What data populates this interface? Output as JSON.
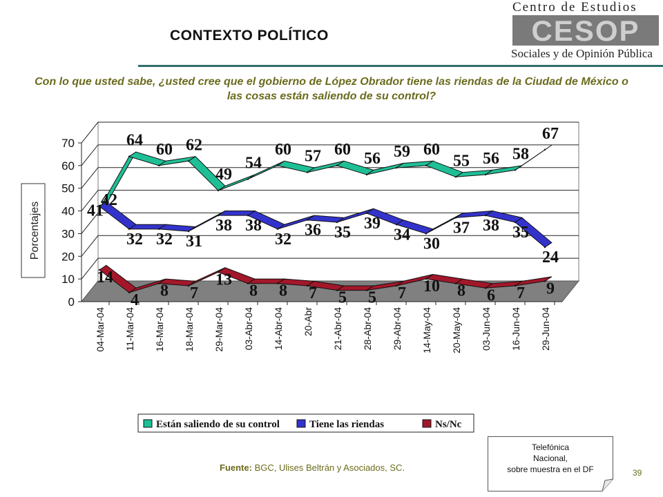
{
  "header": {
    "title": "CONTEXTO POLÍTICO"
  },
  "logo": {
    "top": "Centro de Estudios",
    "mark": "CESOP",
    "bottom": "Sociales y de Opinión Pública"
  },
  "question": "Con lo que usted sabe, ¿usted cree que el gobierno de López Obrador tiene las riendas de la Ciudad de México o las cosas están saliendo de su control?",
  "source": {
    "label": "Fuente:",
    "text": " BGC, Ulises Beltrán y Asociados, SC."
  },
  "note": {
    "line1": "Telefónica",
    "line2": "Nacional,",
    "line3": "sobre muestra en el DF"
  },
  "page_number": "39",
  "chart_data": {
    "type": "line",
    "title": "",
    "ylabel": "Porcentajes",
    "xlabel": "",
    "ylim": [
      0,
      70
    ],
    "yticks": [
      0,
      10,
      20,
      30,
      40,
      50,
      60,
      70
    ],
    "grid": true,
    "legend_position": "bottom",
    "categories": [
      "04-Mar-04",
      "11-Mar-04",
      "16-Mar-04",
      "18-Mar-04",
      "29-Mar-04",
      "03-Abr-04",
      "14-Abr-04",
      "20-Abr",
      "21-Abr-04",
      "28-Abr-04",
      "29-Abr-04",
      "14-May-04",
      "20-May-04",
      "03-Jun-04",
      "16-Jun-04",
      "29-Jun-04"
    ],
    "series": [
      {
        "name": "Están saliendo de su control",
        "color": "#1fbf96",
        "values": [
          41,
          64,
          60,
          62,
          49,
          54,
          60,
          57,
          60,
          56,
          59,
          60,
          55,
          56,
          58,
          67
        ]
      },
      {
        "name": "Tiene las riendas",
        "color": "#3333cc",
        "values": [
          42,
          32,
          32,
          31,
          38,
          38,
          32,
          36,
          35,
          39,
          34,
          30,
          37,
          38,
          35,
          24
        ]
      },
      {
        "name": "Ns/Nc",
        "color": "#a3172a",
        "values": [
          14,
          4,
          8,
          7,
          13,
          8,
          8,
          7,
          5,
          5,
          7,
          10,
          8,
          6,
          7,
          9
        ]
      }
    ]
  }
}
